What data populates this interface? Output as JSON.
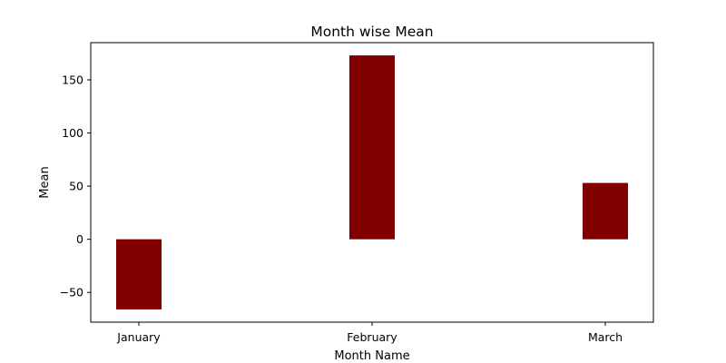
{
  "chart_data": {
    "type": "bar",
    "title": "Month wise Mean",
    "xlabel": "Month Name",
    "ylabel": "Mean",
    "categories": [
      "January",
      "February",
      "March"
    ],
    "values": [
      -66,
      173,
      53
    ],
    "ylim": [
      -78,
      185
    ],
    "yticks": [
      -50,
      0,
      50,
      100,
      150
    ],
    "ytick_labels": [
      "−50",
      "0",
      "50",
      "100",
      "150"
    ],
    "grid": false,
    "bar_color": "#800000"
  }
}
